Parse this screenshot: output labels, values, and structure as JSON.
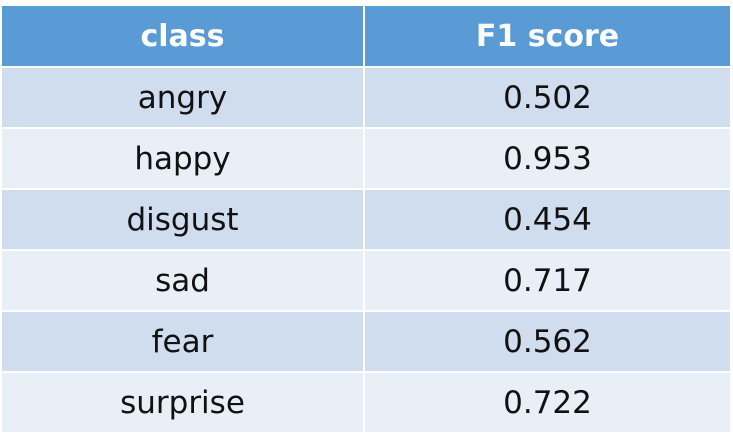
{
  "table": {
    "headers": [
      "class",
      "F1 score"
    ],
    "rows": [
      [
        "angry",
        "0.502"
      ],
      [
        "happy",
        "0.953"
      ],
      [
        "disgust",
        "0.454"
      ],
      [
        "sad",
        "0.717"
      ],
      [
        "fear",
        "0.562"
      ],
      [
        "surprise",
        "0.722"
      ]
    ],
    "colors": {
      "header_bg": "#5b9bd5",
      "row_odd_bg": "#cfddee",
      "row_even_bg": "#e9eff7"
    }
  }
}
